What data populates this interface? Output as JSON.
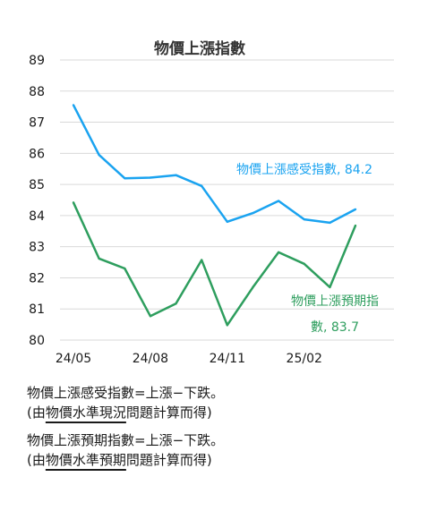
{
  "chart_data": {
    "type": "line",
    "title": "物價上漲指數",
    "xlabel": "",
    "ylabel": "",
    "ylim": [
      80,
      89
    ],
    "yticks": [
      80,
      81,
      82,
      83,
      84,
      85,
      86,
      87,
      88,
      89
    ],
    "x": [
      "24/05",
      "24/06",
      "24/07",
      "24/08",
      "24/09",
      "24/10",
      "24/11",
      "24/12",
      "25/01",
      "25/02",
      "25/03",
      "25/04"
    ],
    "xtick_labels": [
      "24/05",
      "24/08",
      "24/11",
      "25/02"
    ],
    "grid": "horizontal",
    "series": [
      {
        "name": "物價上漲感受指數",
        "end_label": "物價上漲感受指數, 84.2",
        "color": "#1aa3f0",
        "values": [
          87.55,
          85.95,
          85.2,
          85.22,
          85.3,
          84.95,
          83.8,
          84.08,
          84.47,
          83.88,
          83.77,
          84.2
        ]
      },
      {
        "name": "物價上漲預期指數",
        "end_label_line1": "物價上漲預期指",
        "end_label_line2": "數, 83.7",
        "color": "#2e9e5e",
        "values": [
          84.42,
          82.62,
          82.3,
          80.77,
          81.17,
          82.57,
          80.48,
          81.7,
          82.82,
          82.45,
          81.7,
          83.68
        ]
      }
    ]
  },
  "notes": [
    {
      "line1": "物價上漲感受指數=上漲−下跌。",
      "line2_pre": "(由",
      "line2_ul": "物價水準現況",
      "line2_post": "問題計算而得)"
    },
    {
      "line1": "物價上漲預期指數=上漲−下跌。",
      "line2_pre": "(由",
      "line2_ul": "物價水準預期",
      "line2_post": "問題計算而得)"
    }
  ]
}
